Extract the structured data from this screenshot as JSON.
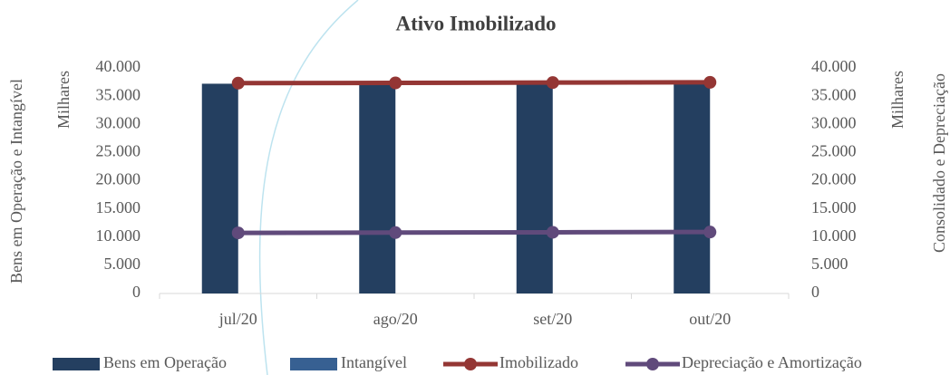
{
  "chart_data": {
    "type": "bar_line",
    "title": "Ativo Imobilizado",
    "y_label": "Bens em Operação e Intangível",
    "y_unit": "Milhares",
    "y2_label": "Consolidado e Depreciação",
    "y2_unit": "Milhares",
    "categories": [
      "jul/20",
      "ago/20",
      "set/20",
      "out/20"
    ],
    "ylim": [
      0,
      40000
    ],
    "yticks": [
      0,
      {
        "value": 5000,
        "label": "5.000"
      },
      {
        "value": 10000,
        "label": "10.000"
      },
      {
        "value": 15000,
        "label": "15.000"
      },
      {
        "value": 20000,
        "label": "20.000"
      },
      {
        "value": 25000,
        "label": "25.000"
      },
      {
        "value": 30000,
        "label": "30.000"
      },
      {
        "value": 35000,
        "label": "35.000"
      },
      {
        "value": 40000,
        "label": "40.000"
      }
    ],
    "y2lim": [
      0,
      40000
    ],
    "y2ticks": [
      0,
      {
        "value": 5000,
        "label": "5.000"
      },
      {
        "value": 10000,
        "label": "10.000"
      },
      {
        "value": 15000,
        "label": "15.000"
      },
      {
        "value": 20000,
        "label": "20.000"
      },
      {
        "value": 25000,
        "label": "25.000"
      },
      {
        "value": 30000,
        "label": "30.000"
      },
      {
        "value": 35000,
        "label": "35.000"
      },
      {
        "value": 40000,
        "label": "40.000"
      }
    ],
    "series": [
      {
        "name": "Bens em Operação",
        "kind": "bar",
        "color": "#243f60",
        "values": [
          37200,
          37250,
          37300,
          37350
        ]
      },
      {
        "name": "Intangível",
        "kind": "bar",
        "color": "#376092",
        "values": [
          0,
          0,
          0,
          0
        ]
      },
      {
        "name": "Imobilizado",
        "kind": "line",
        "axis": "y2",
        "color": "#943634",
        "values": [
          37300,
          37350,
          37400,
          37450
        ]
      },
      {
        "name": "Depreciação e Amortização",
        "kind": "line",
        "axis": "y2",
        "color": "#604a7b",
        "values": [
          10750,
          10800,
          10850,
          10900
        ]
      }
    ]
  }
}
